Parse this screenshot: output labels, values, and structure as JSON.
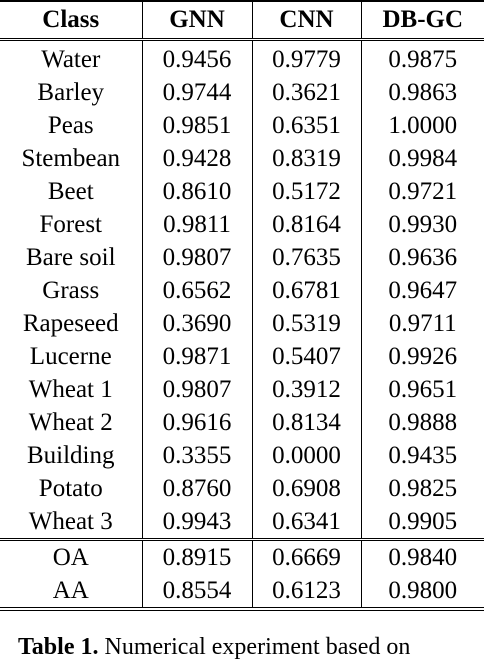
{
  "table": {
    "headers": [
      "Class",
      "GNN",
      "CNN",
      "DB-GC"
    ],
    "rows": [
      [
        "Water",
        "0.9456",
        "0.9779",
        "0.9875"
      ],
      [
        "Barley",
        "0.9744",
        "0.3621",
        "0.9863"
      ],
      [
        "Peas",
        "0.9851",
        "0.6351",
        "1.0000"
      ],
      [
        "Stembean",
        "0.9428",
        "0.8319",
        "0.9984"
      ],
      [
        "Beet",
        "0.8610",
        "0.5172",
        "0.9721"
      ],
      [
        "Forest",
        "0.9811",
        "0.8164",
        "0.9930"
      ],
      [
        "Bare soil",
        "0.9807",
        "0.7635",
        "0.9636"
      ],
      [
        "Grass",
        "0.6562",
        "0.6781",
        "0.9647"
      ],
      [
        "Rapeseed",
        "0.3690",
        "0.5319",
        "0.9711"
      ],
      [
        "Lucerne",
        "0.9871",
        "0.5407",
        "0.9926"
      ],
      [
        "Wheat 1",
        "0.9807",
        "0.3912",
        "0.9651"
      ],
      [
        "Wheat 2",
        "0.9616",
        "0.8134",
        "0.9888"
      ],
      [
        "Building",
        "0.3355",
        "0.0000",
        "0.9435"
      ],
      [
        "Potato",
        "0.8760",
        "0.6908",
        "0.9825"
      ],
      [
        "Wheat 3",
        "0.9943",
        "0.6341",
        "0.9905"
      ]
    ],
    "summary_rows": [
      [
        "OA",
        "0.8915",
        "0.6669",
        "0.9840"
      ],
      [
        "AA",
        "0.8554",
        "0.6123",
        "0.9800"
      ]
    ]
  },
  "caption": {
    "label": "Table 1.",
    "text": "Numerical experiment based on"
  }
}
